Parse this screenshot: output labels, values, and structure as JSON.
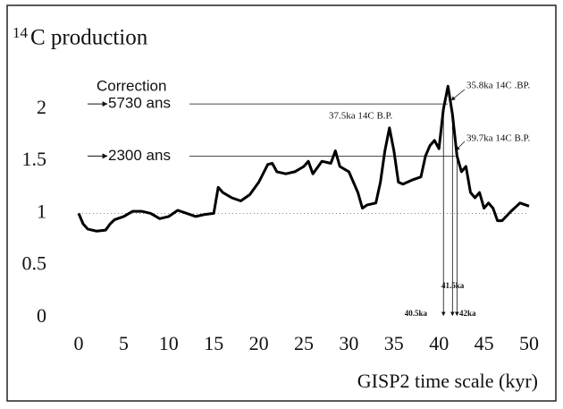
{
  "chart_data": {
    "type": "line",
    "title_isotope": "14",
    "title": "C production",
    "xlabel": "GISP2 time scale (kyr)",
    "correction_label": "Correction",
    "xlim": [
      0,
      50
    ],
    "ylim": [
      -0.1,
      2.3
    ],
    "xticks": [
      0,
      5,
      10,
      15,
      20,
      25,
      30,
      35,
      40,
      45,
      50
    ],
    "yticks": [
      0,
      0.5,
      1,
      1.5,
      2
    ],
    "reference_y": 1,
    "series": [
      {
        "name": "14C production",
        "color": "#000000",
        "x": [
          0,
          0.5,
          1,
          2,
          3,
          3.5,
          4,
          5,
          6,
          7,
          8,
          9,
          10,
          11,
          12,
          13,
          14,
          15,
          15.5,
          16,
          17,
          18,
          19,
          20,
          21,
          21.5,
          22,
          23,
          24,
          25,
          25.5,
          26,
          27,
          28,
          28.5,
          29,
          30,
          31,
          31.5,
          32,
          33,
          33.5,
          34,
          34.5,
          35,
          35.5,
          36,
          37,
          38,
          38.5,
          39,
          39.5,
          40,
          40.5,
          41,
          41.5,
          42,
          42.5,
          43,
          43.5,
          44,
          44.5,
          45,
          45.5,
          46,
          46.5,
          47,
          48,
          49,
          50
        ],
        "values": [
          1.0,
          0.9,
          0.85,
          0.83,
          0.84,
          0.9,
          0.94,
          0.97,
          1.02,
          1.02,
          1.0,
          0.95,
          0.97,
          1.03,
          1.0,
          0.97,
          0.99,
          1.0,
          1.25,
          1.2,
          1.15,
          1.12,
          1.18,
          1.3,
          1.47,
          1.48,
          1.4,
          1.38,
          1.4,
          1.45,
          1.5,
          1.38,
          1.5,
          1.48,
          1.6,
          1.45,
          1.4,
          1.2,
          1.05,
          1.08,
          1.1,
          1.3,
          1.6,
          1.82,
          1.6,
          1.3,
          1.28,
          1.32,
          1.35,
          1.55,
          1.65,
          1.7,
          1.62,
          2.0,
          2.22,
          1.95,
          1.55,
          1.4,
          1.45,
          1.2,
          1.15,
          1.2,
          1.05,
          1.1,
          1.05,
          0.93,
          0.93,
          1.02,
          1.1,
          1.07
        ]
      }
    ],
    "corrections": [
      {
        "label": "5730 ans",
        "value": 2.05,
        "x": 41
      },
      {
        "label": "2300 ans",
        "value": 1.55,
        "x": 41.8
      }
    ],
    "markers": [
      {
        "label": "40.5ka",
        "x": 40.5
      },
      {
        "label": "41.5ka",
        "x": 41.5
      },
      {
        "label": "42ka",
        "x": 42
      }
    ],
    "annotations": [
      "35.8ka 14C .BP.",
      "37.5ka 14C B.P.",
      "39.7ka 14C B.P."
    ]
  }
}
